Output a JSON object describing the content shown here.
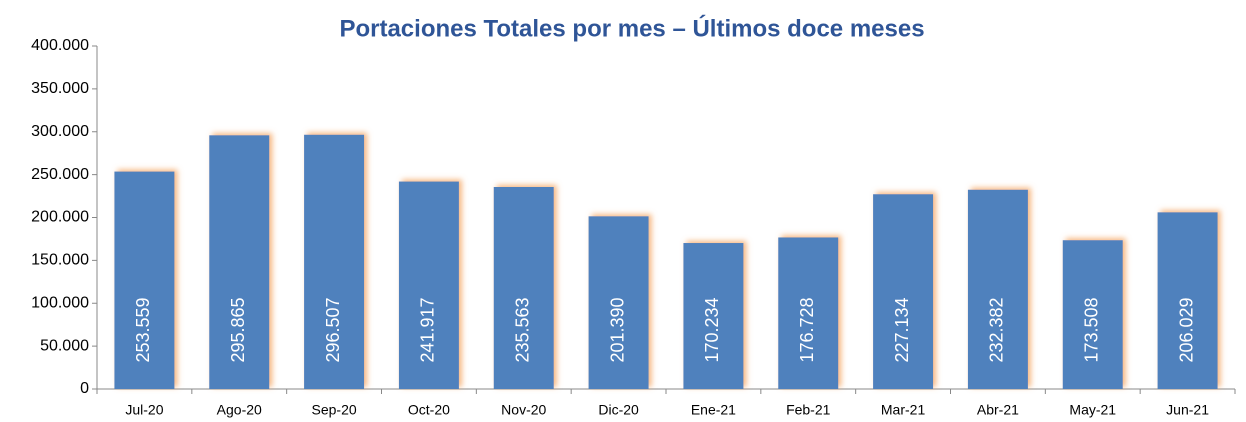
{
  "chart_data": {
    "type": "bar",
    "title": "Portaciones Totales por mes – Últimos doce meses",
    "categories": [
      "Jul-20",
      "Ago-20",
      "Sep-20",
      "Oct-20",
      "Nov-20",
      "Dic-20",
      "Ene-21",
      "Feb-21",
      "Mar-21",
      "Abr-21",
      "May-21",
      "Jun-21"
    ],
    "values": [
      253559,
      295865,
      296507,
      241917,
      235563,
      201390,
      170234,
      176728,
      227134,
      232382,
      173508,
      206029
    ],
    "value_labels": [
      "253.559",
      "295.865",
      "296.507",
      "241.917",
      "235.563",
      "201.390",
      "170.234",
      "176.728",
      "227.134",
      "232.382",
      "173.508",
      "206.029"
    ],
    "color": "#4F81BD",
    "ylim": [
      0,
      400000
    ],
    "yticks": [
      0,
      {
        "value": 50000,
        "label": "50.000"
      },
      {
        "value": 100000,
        "label": "100.000"
      },
      {
        "value": 150000,
        "label": "150.000"
      },
      {
        "value": 200000,
        "label": "200.000"
      },
      {
        "value": 250000,
        "label": "250.000"
      },
      {
        "value": 300000,
        "label": "300.000"
      },
      {
        "value": 350000,
        "label": "350.000"
      },
      {
        "value": 400000,
        "label": "400.000"
      }
    ],
    "grid": false
  }
}
